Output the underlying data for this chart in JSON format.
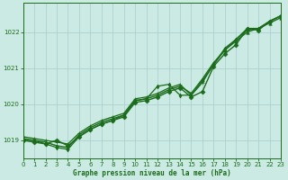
{
  "title": "Graphe pression niveau de la mer (hPa)",
  "bg_color": "#cceae4",
  "grid_color": "#a8cccc",
  "line_color": "#1a6b1a",
  "x_min": 0,
  "x_max": 23,
  "y_min": 1018.5,
  "y_max": 1022.8,
  "yticks": [
    1019,
    1020,
    1021,
    1022
  ],
  "xticks": [
    0,
    1,
    2,
    3,
    4,
    5,
    6,
    7,
    8,
    9,
    10,
    11,
    12,
    13,
    14,
    15,
    16,
    17,
    18,
    19,
    20,
    21,
    22,
    23
  ],
  "series": [
    {
      "x": [
        0,
        1,
        2,
        3,
        4,
        5,
        6,
        7,
        8,
        9,
        10,
        11,
        12,
        13,
        14,
        15,
        16,
        17,
        18,
        19,
        20,
        21,
        22,
        23
      ],
      "y": [
        1019.0,
        1018.95,
        1018.9,
        1019.0,
        1018.85,
        1019.1,
        1019.3,
        1019.45,
        1019.55,
        1019.65,
        1020.05,
        1020.1,
        1020.2,
        1020.35,
        1020.45,
        1020.2,
        1020.35,
        1021.05,
        1021.4,
        1021.65,
        1022.1,
        1022.05,
        1022.3,
        1022.45
      ],
      "marker": "D",
      "lw": 1.0,
      "ms": 2.5
    },
    {
      "x": [
        0,
        1,
        2,
        3,
        4,
        5,
        6,
        7,
        8,
        9,
        10,
        11,
        12,
        13,
        14,
        15,
        16,
        17,
        18,
        19,
        20,
        21,
        22,
        23
      ],
      "y": [
        1019.05,
        1019.0,
        1018.95,
        1018.85,
        1018.8,
        1019.15,
        1019.35,
        1019.5,
        1019.6,
        1019.7,
        1020.1,
        1020.15,
        1020.25,
        1020.4,
        1020.5,
        1020.3,
        1020.7,
        1021.15,
        1021.5,
        1021.75,
        1022.0,
        1022.1,
        1022.25,
        1022.4
      ],
      "marker": "^",
      "lw": 1.0,
      "ms": 2.5
    },
    {
      "x": [
        0,
        1,
        2,
        3,
        4,
        5,
        6,
        7,
        8,
        9,
        10,
        11,
        12,
        13,
        14,
        15,
        16,
        17,
        18,
        19,
        20,
        21,
        22,
        23
      ],
      "y": [
        1019.1,
        1019.05,
        1019.0,
        1018.95,
        1018.9,
        1019.2,
        1019.4,
        1019.55,
        1019.65,
        1019.75,
        1020.15,
        1020.2,
        1020.3,
        1020.45,
        1020.55,
        1020.25,
        1020.6,
        1021.1,
        1021.5,
        1021.8,
        1022.05,
        1022.1,
        1022.3,
        1022.45
      ],
      "marker": "+",
      "lw": 0.9,
      "ms": 3.0
    },
    {
      "x": [
        0,
        1,
        2,
        3,
        4,
        5,
        6,
        7,
        8,
        9,
        10,
        11,
        12,
        13,
        14,
        15,
        16,
        17,
        18,
        19,
        20,
        21,
        22,
        23
      ],
      "y": [
        1019.0,
        1019.0,
        1018.9,
        1018.8,
        1018.75,
        1019.1,
        1019.3,
        1019.45,
        1019.55,
        1019.7,
        1020.1,
        1020.15,
        1020.5,
        1020.55,
        1020.25,
        1020.25,
        1020.65,
        1021.1,
        1021.55,
        1021.8,
        1022.1,
        1022.1,
        1022.3,
        1022.45
      ],
      "marker": "d",
      "lw": 0.9,
      "ms": 2.5
    }
  ]
}
